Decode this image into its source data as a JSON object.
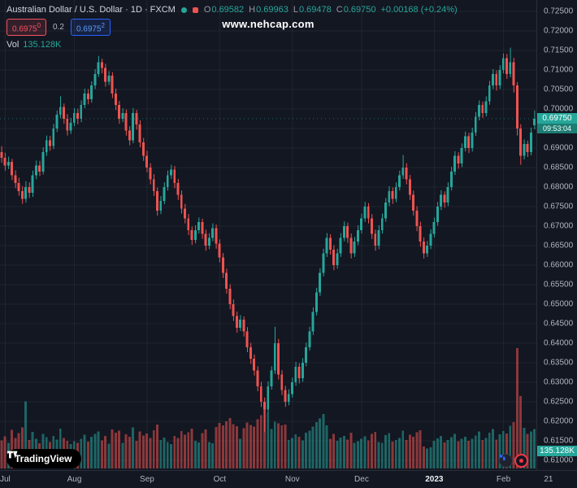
{
  "header": {
    "symbol_title": "Australian Dollar / U.S. Dollar · 1D · FXCM",
    "ohlc": [
      {
        "k": "O",
        "v": "0.69582"
      },
      {
        "k": "H",
        "v": "0.69963"
      },
      {
        "k": "L",
        "v": "0.69478"
      },
      {
        "k": "C",
        "v": "0.69750"
      }
    ],
    "change": "+0.00168 (+0.24%)",
    "sell_base": "0.6975",
    "sell_sup": "0",
    "spread": "0.2",
    "buy_base": "0.6975",
    "buy_sup": "2",
    "vol_label": "Vol",
    "vol_value": "135.128K"
  },
  "watermark": "www.nehcap.com",
  "price_tag": {
    "price": "0.69750",
    "countdown": "09:53:04"
  },
  "volume_tag": "135.128K",
  "branding": {
    "logo_text": "TradingView"
  },
  "colors": {
    "background": "#131722",
    "grid": "rgba(178,181,190,0.08)",
    "up": "#26a69a",
    "down": "#ef5350",
    "vol_up": "rgba(38,166,154,0.55)",
    "vol_down": "rgba(239,83,80,0.55)",
    "sell_red": "#f7525f",
    "buy_blue": "#2962ff",
    "axis_text": "#b2b5be",
    "tag_green": "#26a69a"
  },
  "chart_data": {
    "type": "candlestick",
    "title": "Australian Dollar / U.S. Dollar",
    "interval": "1D",
    "exchange": "FXCM",
    "legend_position": "top-left",
    "grid": true,
    "price_range": [
      0.61,
      0.725
    ],
    "price_ticks": [
      "0.72500",
      "0.72000",
      "0.71500",
      "0.71000",
      "0.70500",
      "0.70000",
      "0.69500",
      "0.69000",
      "0.68500",
      "0.68000",
      "0.67500",
      "0.67000",
      "0.66500",
      "0.66000",
      "0.65500",
      "0.65000",
      "0.64500",
      "0.64000",
      "0.63500",
      "0.63000",
      "0.62500",
      "0.62000",
      "0.61500",
      "0.61000"
    ],
    "time_ticks": [
      {
        "label": "Jul",
        "index": 1
      },
      {
        "label": "Aug",
        "index": 21
      },
      {
        "label": "Sep",
        "index": 42
      },
      {
        "label": "Oct",
        "index": 63
      },
      {
        "label": "Nov",
        "index": 84
      },
      {
        "label": "Dec",
        "index": 104
      },
      {
        "label": "2023",
        "index": 125,
        "highlight": true
      },
      {
        "label": "Feb",
        "index": 145
      },
      {
        "label": "21",
        "index": 158
      }
    ],
    "volume_unit": "K",
    "candles_format": [
      "open",
      "high",
      "low",
      "close",
      "volume_k"
    ],
    "candles": [
      [
        0.689,
        0.6905,
        0.6862,
        0.6875,
        96
      ],
      [
        0.6875,
        0.6888,
        0.6842,
        0.6855,
        110
      ],
      [
        0.6855,
        0.6878,
        0.6846,
        0.6865,
        88
      ],
      [
        0.6865,
        0.6872,
        0.6818,
        0.683,
        132
      ],
      [
        0.683,
        0.6843,
        0.6797,
        0.681,
        105
      ],
      [
        0.681,
        0.6824,
        0.6778,
        0.679,
        121
      ],
      [
        0.679,
        0.6802,
        0.6757,
        0.677,
        140
      ],
      [
        0.677,
        0.6815,
        0.676,
        0.68,
        230
      ],
      [
        0.68,
        0.6812,
        0.6772,
        0.6785,
        98
      ],
      [
        0.6785,
        0.6842,
        0.6775,
        0.683,
        125
      ],
      [
        0.683,
        0.6868,
        0.682,
        0.6855,
        102
      ],
      [
        0.6855,
        0.6867,
        0.6828,
        0.684,
        86
      ],
      [
        0.684,
        0.6902,
        0.6832,
        0.689,
        118
      ],
      [
        0.689,
        0.6932,
        0.688,
        0.692,
        107
      ],
      [
        0.692,
        0.6931,
        0.6893,
        0.6905,
        90
      ],
      [
        0.6905,
        0.6962,
        0.6897,
        0.695,
        112
      ],
      [
        0.695,
        0.6996,
        0.6941,
        0.6985,
        99
      ],
      [
        0.6985,
        0.7033,
        0.6976,
        0.7005,
        136
      ],
      [
        0.7005,
        0.7014,
        0.6962,
        0.6975,
        104
      ],
      [
        0.6975,
        0.6987,
        0.6932,
        0.6945,
        95
      ],
      [
        0.6945,
        0.6977,
        0.6936,
        0.6965,
        84
      ],
      [
        0.6965,
        0.7002,
        0.6956,
        0.699,
        93
      ],
      [
        0.699,
        0.7001,
        0.6961,
        0.6975,
        87
      ],
      [
        0.6975,
        0.7022,
        0.6966,
        0.701,
        101
      ],
      [
        0.701,
        0.7052,
        0.7002,
        0.704,
        115
      ],
      [
        0.704,
        0.7051,
        0.7012,
        0.7025,
        92
      ],
      [
        0.7025,
        0.7071,
        0.7016,
        0.706,
        108
      ],
      [
        0.706,
        0.7102,
        0.7051,
        0.709,
        119
      ],
      [
        0.709,
        0.7136,
        0.7082,
        0.712,
        127
      ],
      [
        0.712,
        0.7129,
        0.7091,
        0.7105,
        96
      ],
      [
        0.7105,
        0.7116,
        0.7057,
        0.707,
        111
      ],
      [
        0.707,
        0.7097,
        0.7061,
        0.7085,
        85
      ],
      [
        0.7085,
        0.7094,
        0.7028,
        0.704,
        134
      ],
      [
        0.704,
        0.7052,
        0.6997,
        0.701,
        122
      ],
      [
        0.701,
        0.7021,
        0.6962,
        0.6975,
        129
      ],
      [
        0.6975,
        0.7002,
        0.6966,
        0.699,
        88
      ],
      [
        0.699,
        0.6999,
        0.6932,
        0.6945,
        117
      ],
      [
        0.6945,
        0.6956,
        0.6907,
        0.692,
        109
      ],
      [
        0.692,
        0.7002,
        0.6912,
        0.699,
        140
      ],
      [
        0.699,
        0.6998,
        0.6947,
        0.696,
        94
      ],
      [
        0.696,
        0.6971,
        0.6902,
        0.6915,
        126
      ],
      [
        0.6915,
        0.6926,
        0.6867,
        0.688,
        113
      ],
      [
        0.688,
        0.6893,
        0.6838,
        0.685,
        120
      ],
      [
        0.685,
        0.6861,
        0.6807,
        0.682,
        104
      ],
      [
        0.682,
        0.6833,
        0.6777,
        0.679,
        131
      ],
      [
        0.679,
        0.6799,
        0.6727,
        0.674,
        150
      ],
      [
        0.674,
        0.6777,
        0.6731,
        0.6765,
        97
      ],
      [
        0.6765,
        0.6812,
        0.6756,
        0.68,
        106
      ],
      [
        0.68,
        0.6842,
        0.6791,
        0.683,
        91
      ],
      [
        0.683,
        0.6857,
        0.6821,
        0.6845,
        83
      ],
      [
        0.6845,
        0.6854,
        0.6797,
        0.681,
        112
      ],
      [
        0.681,
        0.6821,
        0.6767,
        0.678,
        105
      ],
      [
        0.678,
        0.6791,
        0.6732,
        0.6745,
        128
      ],
      [
        0.6745,
        0.6757,
        0.6707,
        0.672,
        116
      ],
      [
        0.672,
        0.6731,
        0.6677,
        0.669,
        124
      ],
      [
        0.669,
        0.6699,
        0.6652,
        0.6665,
        137
      ],
      [
        0.6665,
        0.6702,
        0.6656,
        0.669,
        95
      ],
      [
        0.669,
        0.6722,
        0.6681,
        0.671,
        89
      ],
      [
        0.671,
        0.6719,
        0.6667,
        0.668,
        121
      ],
      [
        0.668,
        0.6691,
        0.6637,
        0.665,
        133
      ],
      [
        0.665,
        0.6682,
        0.6641,
        0.667,
        90
      ],
      [
        0.667,
        0.6707,
        0.6661,
        0.6695,
        86
      ],
      [
        0.6695,
        0.6704,
        0.6642,
        0.6655,
        142
      ],
      [
        0.6655,
        0.6666,
        0.6607,
        0.662,
        156
      ],
      [
        0.662,
        0.6631,
        0.6567,
        0.658,
        148
      ],
      [
        0.658,
        0.6591,
        0.6527,
        0.654,
        161
      ],
      [
        0.654,
        0.6551,
        0.6487,
        0.65,
        173
      ],
      [
        0.65,
        0.6512,
        0.6457,
        0.647,
        152
      ],
      [
        0.647,
        0.6481,
        0.6427,
        0.644,
        145
      ],
      [
        0.644,
        0.6472,
        0.6431,
        0.646,
        101
      ],
      [
        0.646,
        0.6469,
        0.6417,
        0.643,
        138
      ],
      [
        0.643,
        0.6441,
        0.6377,
        0.639,
        157
      ],
      [
        0.639,
        0.6401,
        0.6347,
        0.636,
        149
      ],
      [
        0.636,
        0.6371,
        0.6317,
        0.633,
        144
      ],
      [
        0.633,
        0.6341,
        0.6277,
        0.629,
        168
      ],
      [
        0.629,
        0.6301,
        0.6237,
        0.625,
        182
      ],
      [
        0.625,
        0.6261,
        0.6172,
        0.623,
        214
      ],
      [
        0.623,
        0.6302,
        0.6221,
        0.629,
        190
      ],
      [
        0.629,
        0.6341,
        0.6281,
        0.633,
        135
      ],
      [
        0.633,
        0.6442,
        0.6321,
        0.64,
        160
      ],
      [
        0.64,
        0.6411,
        0.6307,
        0.632,
        154
      ],
      [
        0.632,
        0.6331,
        0.6267,
        0.628,
        147
      ],
      [
        0.628,
        0.6291,
        0.6237,
        0.625,
        151
      ],
      [
        0.625,
        0.6282,
        0.6241,
        0.627,
        98
      ],
      [
        0.627,
        0.6312,
        0.6261,
        0.63,
        104
      ],
      [
        0.63,
        0.6352,
        0.6291,
        0.634,
        117
      ],
      [
        0.634,
        0.6349,
        0.6297,
        0.631,
        109
      ],
      [
        0.631,
        0.6362,
        0.6301,
        0.635,
        96
      ],
      [
        0.635,
        0.6402,
        0.6341,
        0.639,
        122
      ],
      [
        0.639,
        0.6442,
        0.6381,
        0.643,
        130
      ],
      [
        0.643,
        0.6492,
        0.6421,
        0.648,
        143
      ],
      [
        0.648,
        0.6542,
        0.6471,
        0.653,
        158
      ],
      [
        0.653,
        0.6592,
        0.6521,
        0.658,
        171
      ],
      [
        0.658,
        0.6642,
        0.6571,
        0.663,
        186
      ],
      [
        0.663,
        0.6682,
        0.6621,
        0.667,
        147
      ],
      [
        0.667,
        0.6679,
        0.6627,
        0.664,
        102
      ],
      [
        0.664,
        0.6651,
        0.6587,
        0.66,
        118
      ],
      [
        0.66,
        0.6642,
        0.6591,
        0.663,
        94
      ],
      [
        0.663,
        0.6682,
        0.6621,
        0.667,
        106
      ],
      [
        0.667,
        0.6712,
        0.6661,
        0.67,
        112
      ],
      [
        0.67,
        0.6709,
        0.6657,
        0.667,
        99
      ],
      [
        0.667,
        0.6681,
        0.6617,
        0.663,
        123
      ],
      [
        0.663,
        0.6672,
        0.6621,
        0.666,
        87
      ],
      [
        0.666,
        0.6702,
        0.6651,
        0.669,
        93
      ],
      [
        0.669,
        0.6732,
        0.6681,
        0.672,
        101
      ],
      [
        0.672,
        0.6762,
        0.6711,
        0.675,
        110
      ],
      [
        0.675,
        0.6759,
        0.6707,
        0.672,
        96
      ],
      [
        0.672,
        0.6731,
        0.6667,
        0.668,
        119
      ],
      [
        0.668,
        0.6691,
        0.6637,
        0.665,
        125
      ],
      [
        0.665,
        0.6702,
        0.6641,
        0.669,
        91
      ],
      [
        0.669,
        0.6732,
        0.6681,
        0.672,
        88
      ],
      [
        0.672,
        0.6772,
        0.6711,
        0.676,
        114
      ],
      [
        0.676,
        0.6802,
        0.6751,
        0.679,
        121
      ],
      [
        0.679,
        0.6799,
        0.6757,
        0.677,
        92
      ],
      [
        0.677,
        0.6812,
        0.6761,
        0.68,
        97
      ],
      [
        0.68,
        0.6842,
        0.6791,
        0.683,
        105
      ],
      [
        0.683,
        0.6882,
        0.6821,
        0.685,
        129
      ],
      [
        0.685,
        0.6861,
        0.6807,
        0.682,
        98
      ],
      [
        0.682,
        0.6831,
        0.6767,
        0.678,
        116
      ],
      [
        0.678,
        0.6791,
        0.6727,
        0.674,
        108
      ],
      [
        0.674,
        0.6751,
        0.6687,
        0.67,
        124
      ],
      [
        0.67,
        0.6711,
        0.6647,
        0.666,
        131
      ],
      [
        0.666,
        0.6671,
        0.6617,
        0.663,
        75
      ],
      [
        0.663,
        0.6662,
        0.6621,
        0.665,
        68
      ],
      [
        0.665,
        0.6692,
        0.6641,
        0.668,
        72
      ],
      [
        0.668,
        0.6722,
        0.6671,
        0.671,
        95
      ],
      [
        0.671,
        0.6762,
        0.6701,
        0.675,
        103
      ],
      [
        0.675,
        0.6792,
        0.6741,
        0.678,
        111
      ],
      [
        0.678,
        0.6789,
        0.6747,
        0.676,
        89
      ],
      [
        0.676,
        0.6812,
        0.6751,
        0.68,
        98
      ],
      [
        0.68,
        0.6852,
        0.6791,
        0.684,
        107
      ],
      [
        0.684,
        0.6892,
        0.6831,
        0.688,
        118
      ],
      [
        0.688,
        0.6889,
        0.6847,
        0.686,
        93
      ],
      [
        0.686,
        0.6912,
        0.6851,
        0.69,
        102
      ],
      [
        0.69,
        0.6942,
        0.6891,
        0.693,
        109
      ],
      [
        0.693,
        0.6939,
        0.6887,
        0.69,
        94
      ],
      [
        0.69,
        0.6952,
        0.6891,
        0.694,
        101
      ],
      [
        0.694,
        0.6992,
        0.6931,
        0.698,
        113
      ],
      [
        0.698,
        0.7022,
        0.6971,
        0.701,
        126
      ],
      [
        0.701,
        0.7019,
        0.6977,
        0.699,
        97
      ],
      [
        0.699,
        0.7032,
        0.6981,
        0.702,
        104
      ],
      [
        0.702,
        0.7072,
        0.7011,
        0.706,
        122
      ],
      [
        0.706,
        0.7102,
        0.7051,
        0.709,
        135
      ],
      [
        0.709,
        0.7099,
        0.7047,
        0.706,
        99
      ],
      [
        0.706,
        0.7112,
        0.7051,
        0.71,
        117
      ],
      [
        0.71,
        0.7142,
        0.7091,
        0.713,
        128
      ],
      [
        0.713,
        0.7141,
        0.7077,
        0.709,
        120
      ],
      [
        0.709,
        0.7157,
        0.7081,
        0.712,
        146
      ],
      [
        0.712,
        0.7131,
        0.7042,
        0.706,
        158
      ],
      [
        0.706,
        0.7069,
        0.6932,
        0.695,
        412
      ],
      [
        0.695,
        0.6961,
        0.6857,
        0.688,
        248
      ],
      [
        0.688,
        0.6922,
        0.6871,
        0.691,
        139
      ],
      [
        0.691,
        0.6919,
        0.6877,
        0.689,
        118
      ],
      [
        0.689,
        0.6952,
        0.6881,
        0.694,
        126
      ],
      [
        0.69582,
        0.69963,
        0.69478,
        0.6975,
        135.128
      ]
    ]
  }
}
